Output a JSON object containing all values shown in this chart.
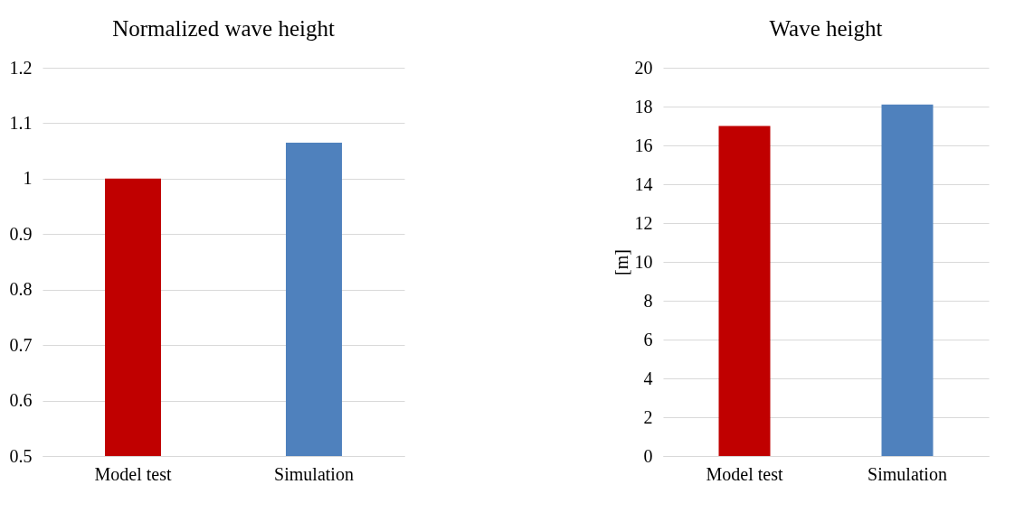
{
  "chart_data": [
    {
      "type": "bar",
      "title": "Normalized wave height",
      "categories": [
        "Model test",
        "Simulation"
      ],
      "colors": [
        "#c00000",
        "#4f81bd"
      ],
      "values": [
        1.0,
        1.065
      ],
      "ylim": [
        0.5,
        1.2
      ],
      "yticks": [
        0.5,
        0.6,
        0.7,
        0.8,
        0.9,
        {
          "value": 1,
          "label": "1"
        },
        1.1,
        1.2
      ],
      "grid": "y"
    },
    {
      "type": "bar",
      "title": "Wave height",
      "ylabel": "[m]",
      "categories": [
        "Model test",
        "Simulation"
      ],
      "colors": [
        "#c00000",
        "#4f81bd"
      ],
      "values": [
        17.0,
        18.1
      ],
      "ylim": [
        0,
        20
      ],
      "yticks": [
        0,
        2,
        4,
        6,
        8,
        10,
        12,
        14,
        16,
        18,
        20
      ],
      "grid": "y"
    }
  ]
}
